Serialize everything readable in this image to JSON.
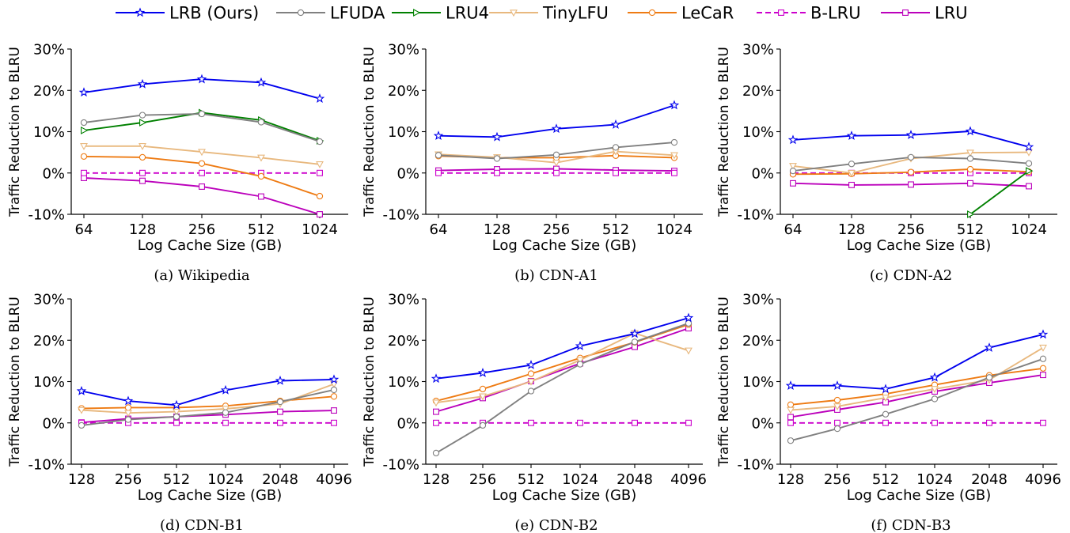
{
  "legend": {
    "entries": [
      {
        "name": "LRB (Ours)",
        "color": "#0000ee",
        "marker": "star",
        "dash": false
      },
      {
        "name": "LFUDA",
        "color": "#808080",
        "marker": "circle",
        "dash": false
      },
      {
        "name": "LRU4",
        "color": "#008000",
        "marker": "triangle-right",
        "dash": false
      },
      {
        "name": "TinyLFU",
        "color": "#e8b87e",
        "marker": "triangle-down",
        "dash": false
      },
      {
        "name": "LeCaR",
        "color": "#ee7b13",
        "marker": "circle",
        "dash": false
      },
      {
        "name": "B-LRU",
        "color": "#cc00cc",
        "marker": "square",
        "dash": true
      },
      {
        "name": "LRU",
        "color": "#bb00bb",
        "marker": "square",
        "dash": false
      }
    ]
  },
  "chart_data": [
    {
      "type": "line",
      "caption": "(a) Wikipedia",
      "xlabel": "Log Cache Size (GB)",
      "ylabel": "Traffic Reduction to BLRU",
      "x": [
        "64",
        "128",
        "256",
        "512",
        "1024"
      ],
      "ylim": [
        -10,
        30
      ],
      "yticks": [
        "-10%",
        "0%",
        "10%",
        "20%",
        "30%"
      ],
      "series": [
        {
          "name": "LRB (Ours)",
          "values": [
            19.5,
            21.5,
            22.7,
            21.9,
            18.0
          ]
        },
        {
          "name": "LFUDA",
          "values": [
            12.2,
            14.0,
            14.3,
            12.3,
            7.6
          ]
        },
        {
          "name": "LRU4",
          "values": [
            10.3,
            12.2,
            14.6,
            12.8,
            7.8
          ]
        },
        {
          "name": "TinyLFU",
          "values": [
            6.5,
            6.5,
            5.1,
            3.7,
            2.1
          ]
        },
        {
          "name": "LeCaR",
          "values": [
            4.0,
            3.8,
            2.3,
            -0.8,
            -5.6
          ]
        },
        {
          "name": "B-LRU",
          "values": [
            0,
            0,
            0,
            0,
            0
          ]
        },
        {
          "name": "LRU",
          "values": [
            -1.2,
            -1.9,
            -3.3,
            -5.7,
            -10.0
          ]
        }
      ]
    },
    {
      "type": "line",
      "caption": "(b) CDN-A1",
      "xlabel": "Log Cache Size (GB)",
      "ylabel": "Traffic Reduction to BLRU",
      "x": [
        "64",
        "128",
        "256",
        "512",
        "1024"
      ],
      "ylim": [
        -10,
        30
      ],
      "yticks": [
        "-10%",
        "0%",
        "10%",
        "20%",
        "30%"
      ],
      "series": [
        {
          "name": "LRB (Ours)",
          "values": [
            9.0,
            8.7,
            10.7,
            11.7,
            16.4
          ]
        },
        {
          "name": "LFUDA",
          "values": [
            4.3,
            3.5,
            4.4,
            6.2,
            7.4
          ]
        },
        {
          "name": "LRU4",
          "values": [
            null,
            null,
            null,
            null,
            null
          ]
        },
        {
          "name": "TinyLFU",
          "values": [
            4.5,
            3.8,
            2.5,
            5.2,
            4.3
          ]
        },
        {
          "name": "LeCaR",
          "values": [
            4.1,
            3.7,
            3.7,
            4.2,
            3.7
          ]
        },
        {
          "name": "B-LRU",
          "values": [
            0,
            0,
            0,
            0,
            0
          ]
        },
        {
          "name": "LRU",
          "values": [
            0.6,
            0.9,
            1.0,
            0.7,
            0.5
          ]
        }
      ]
    },
    {
      "type": "line",
      "caption": "(c) CDN-A2",
      "xlabel": "Log Cache Size (GB)",
      "ylabel": "Traffic Reduction to BLRU",
      "x": [
        "64",
        "128",
        "256",
        "512",
        "1024"
      ],
      "ylim": [
        -10,
        30
      ],
      "yticks": [
        "-10%",
        "0%",
        "10%",
        "20%",
        "30%"
      ],
      "series": [
        {
          "name": "LRB (Ours)",
          "values": [
            8.0,
            9.0,
            9.2,
            10.1,
            6.3
          ]
        },
        {
          "name": "LFUDA",
          "values": [
            0.5,
            2.2,
            3.8,
            3.5,
            2.3
          ]
        },
        {
          "name": "LRU4",
          "values": [
            null,
            null,
            null,
            -10.0,
            0.5
          ]
        },
        {
          "name": "TinyLFU",
          "values": [
            1.7,
            0.0,
            3.5,
            4.9,
            5.0
          ]
        },
        {
          "name": "LeCaR",
          "values": [
            -0.3,
            -0.2,
            0.2,
            0.9,
            0.3
          ]
        },
        {
          "name": "B-LRU",
          "values": [
            0,
            0,
            0,
            0,
            0
          ]
        },
        {
          "name": "LRU",
          "values": [
            -2.5,
            -2.9,
            -2.8,
            -2.5,
            -3.2
          ]
        }
      ]
    },
    {
      "type": "line",
      "caption": "(d) CDN-B1",
      "xlabel": "Log Cache Size (GB)",
      "ylabel": "Traffic Reduction to BLRU",
      "x": [
        "128",
        "256",
        "512",
        "1024",
        "2048",
        "4096"
      ],
      "ylim": [
        -10,
        30
      ],
      "yticks": [
        "-10%",
        "0%",
        "10%",
        "20%",
        "30%"
      ],
      "series": [
        {
          "name": "LRB (Ours)",
          "values": [
            7.7,
            5.3,
            4.3,
            7.9,
            10.2,
            10.5
          ]
        },
        {
          "name": "LFUDA",
          "values": [
            -0.6,
            0.8,
            1.5,
            2.5,
            5.1,
            8.0
          ]
        },
        {
          "name": "LRU4",
          "values": [
            null,
            null,
            null,
            null,
            null,
            null
          ]
        },
        {
          "name": "TinyLFU",
          "values": [
            3.1,
            2.4,
            2.7,
            3.4,
            4.6,
            9.4
          ]
        },
        {
          "name": "LeCaR",
          "values": [
            3.5,
            3.7,
            3.7,
            4.1,
            5.3,
            6.4
          ]
        },
        {
          "name": "B-LRU",
          "values": [
            0,
            0,
            0,
            0,
            0,
            0
          ]
        },
        {
          "name": "LRU",
          "values": [
            0.1,
            1.0,
            1.5,
            2.0,
            2.7,
            3.0
          ]
        }
      ]
    },
    {
      "type": "line",
      "caption": "(e) CDN-B2",
      "xlabel": "Log Cache Size (GB)",
      "ylabel": "Traffic Reduction to BLRU",
      "x": [
        "128",
        "256",
        "512",
        "1024",
        "2048",
        "4096"
      ],
      "ylim": [
        -10,
        30
      ],
      "yticks": [
        "-10%",
        "0%",
        "10%",
        "20%",
        "30%"
      ],
      "series": [
        {
          "name": "LRB (Ours)",
          "values": [
            10.7,
            12.1,
            14.0,
            18.6,
            21.6,
            25.4
          ]
        },
        {
          "name": "LFUDA",
          "values": [
            -7.3,
            -0.6,
            7.7,
            14.2,
            19.6,
            24.1
          ]
        },
        {
          "name": "LRU4",
          "values": [
            null,
            null,
            null,
            null,
            null,
            null
          ]
        },
        {
          "name": "TinyLFU",
          "values": [
            4.9,
            6.4,
            10.0,
            15.2,
            21.7,
            17.5
          ]
        },
        {
          "name": "LeCaR",
          "values": [
            5.3,
            8.2,
            11.9,
            15.7,
            19.5,
            23.8
          ]
        },
        {
          "name": "B-LRU",
          "values": [
            0,
            0,
            0,
            0,
            0,
            0
          ]
        },
        {
          "name": "LRU",
          "values": [
            2.7,
            6.0,
            10.1,
            14.4,
            18.4,
            22.9
          ]
        }
      ]
    },
    {
      "type": "line",
      "caption": "(f) CDN-B3",
      "xlabel": "Log Cache Size (GB)",
      "ylabel": "Traffic Reduction to BLRU",
      "x": [
        "128",
        "256",
        "512",
        "1024",
        "2048",
        "4096"
      ],
      "ylim": [
        -10,
        30
      ],
      "yticks": [
        "-10%",
        "0%",
        "10%",
        "20%",
        "30%"
      ],
      "series": [
        {
          "name": "LRB (Ours)",
          "values": [
            9.0,
            9.0,
            8.2,
            11.0,
            18.2,
            21.4
          ]
        },
        {
          "name": "LFUDA",
          "values": [
            -4.3,
            -1.4,
            2.1,
            5.8,
            11.0,
            15.5
          ]
        },
        {
          "name": "LRU4",
          "values": [
            null,
            null,
            null,
            null,
            null,
            null
          ]
        },
        {
          "name": "TinyLFU",
          "values": [
            3.1,
            4.0,
            6.1,
            8.2,
            10.4,
            18.2
          ]
        },
        {
          "name": "LeCaR",
          "values": [
            4.4,
            5.5,
            7.0,
            9.2,
            11.5,
            13.2
          ]
        },
        {
          "name": "B-LRU",
          "values": [
            0,
            0,
            0,
            0,
            0,
            0
          ]
        },
        {
          "name": "LRU",
          "values": [
            1.4,
            3.2,
            5.0,
            7.6,
            9.7,
            11.6
          ]
        }
      ]
    }
  ]
}
